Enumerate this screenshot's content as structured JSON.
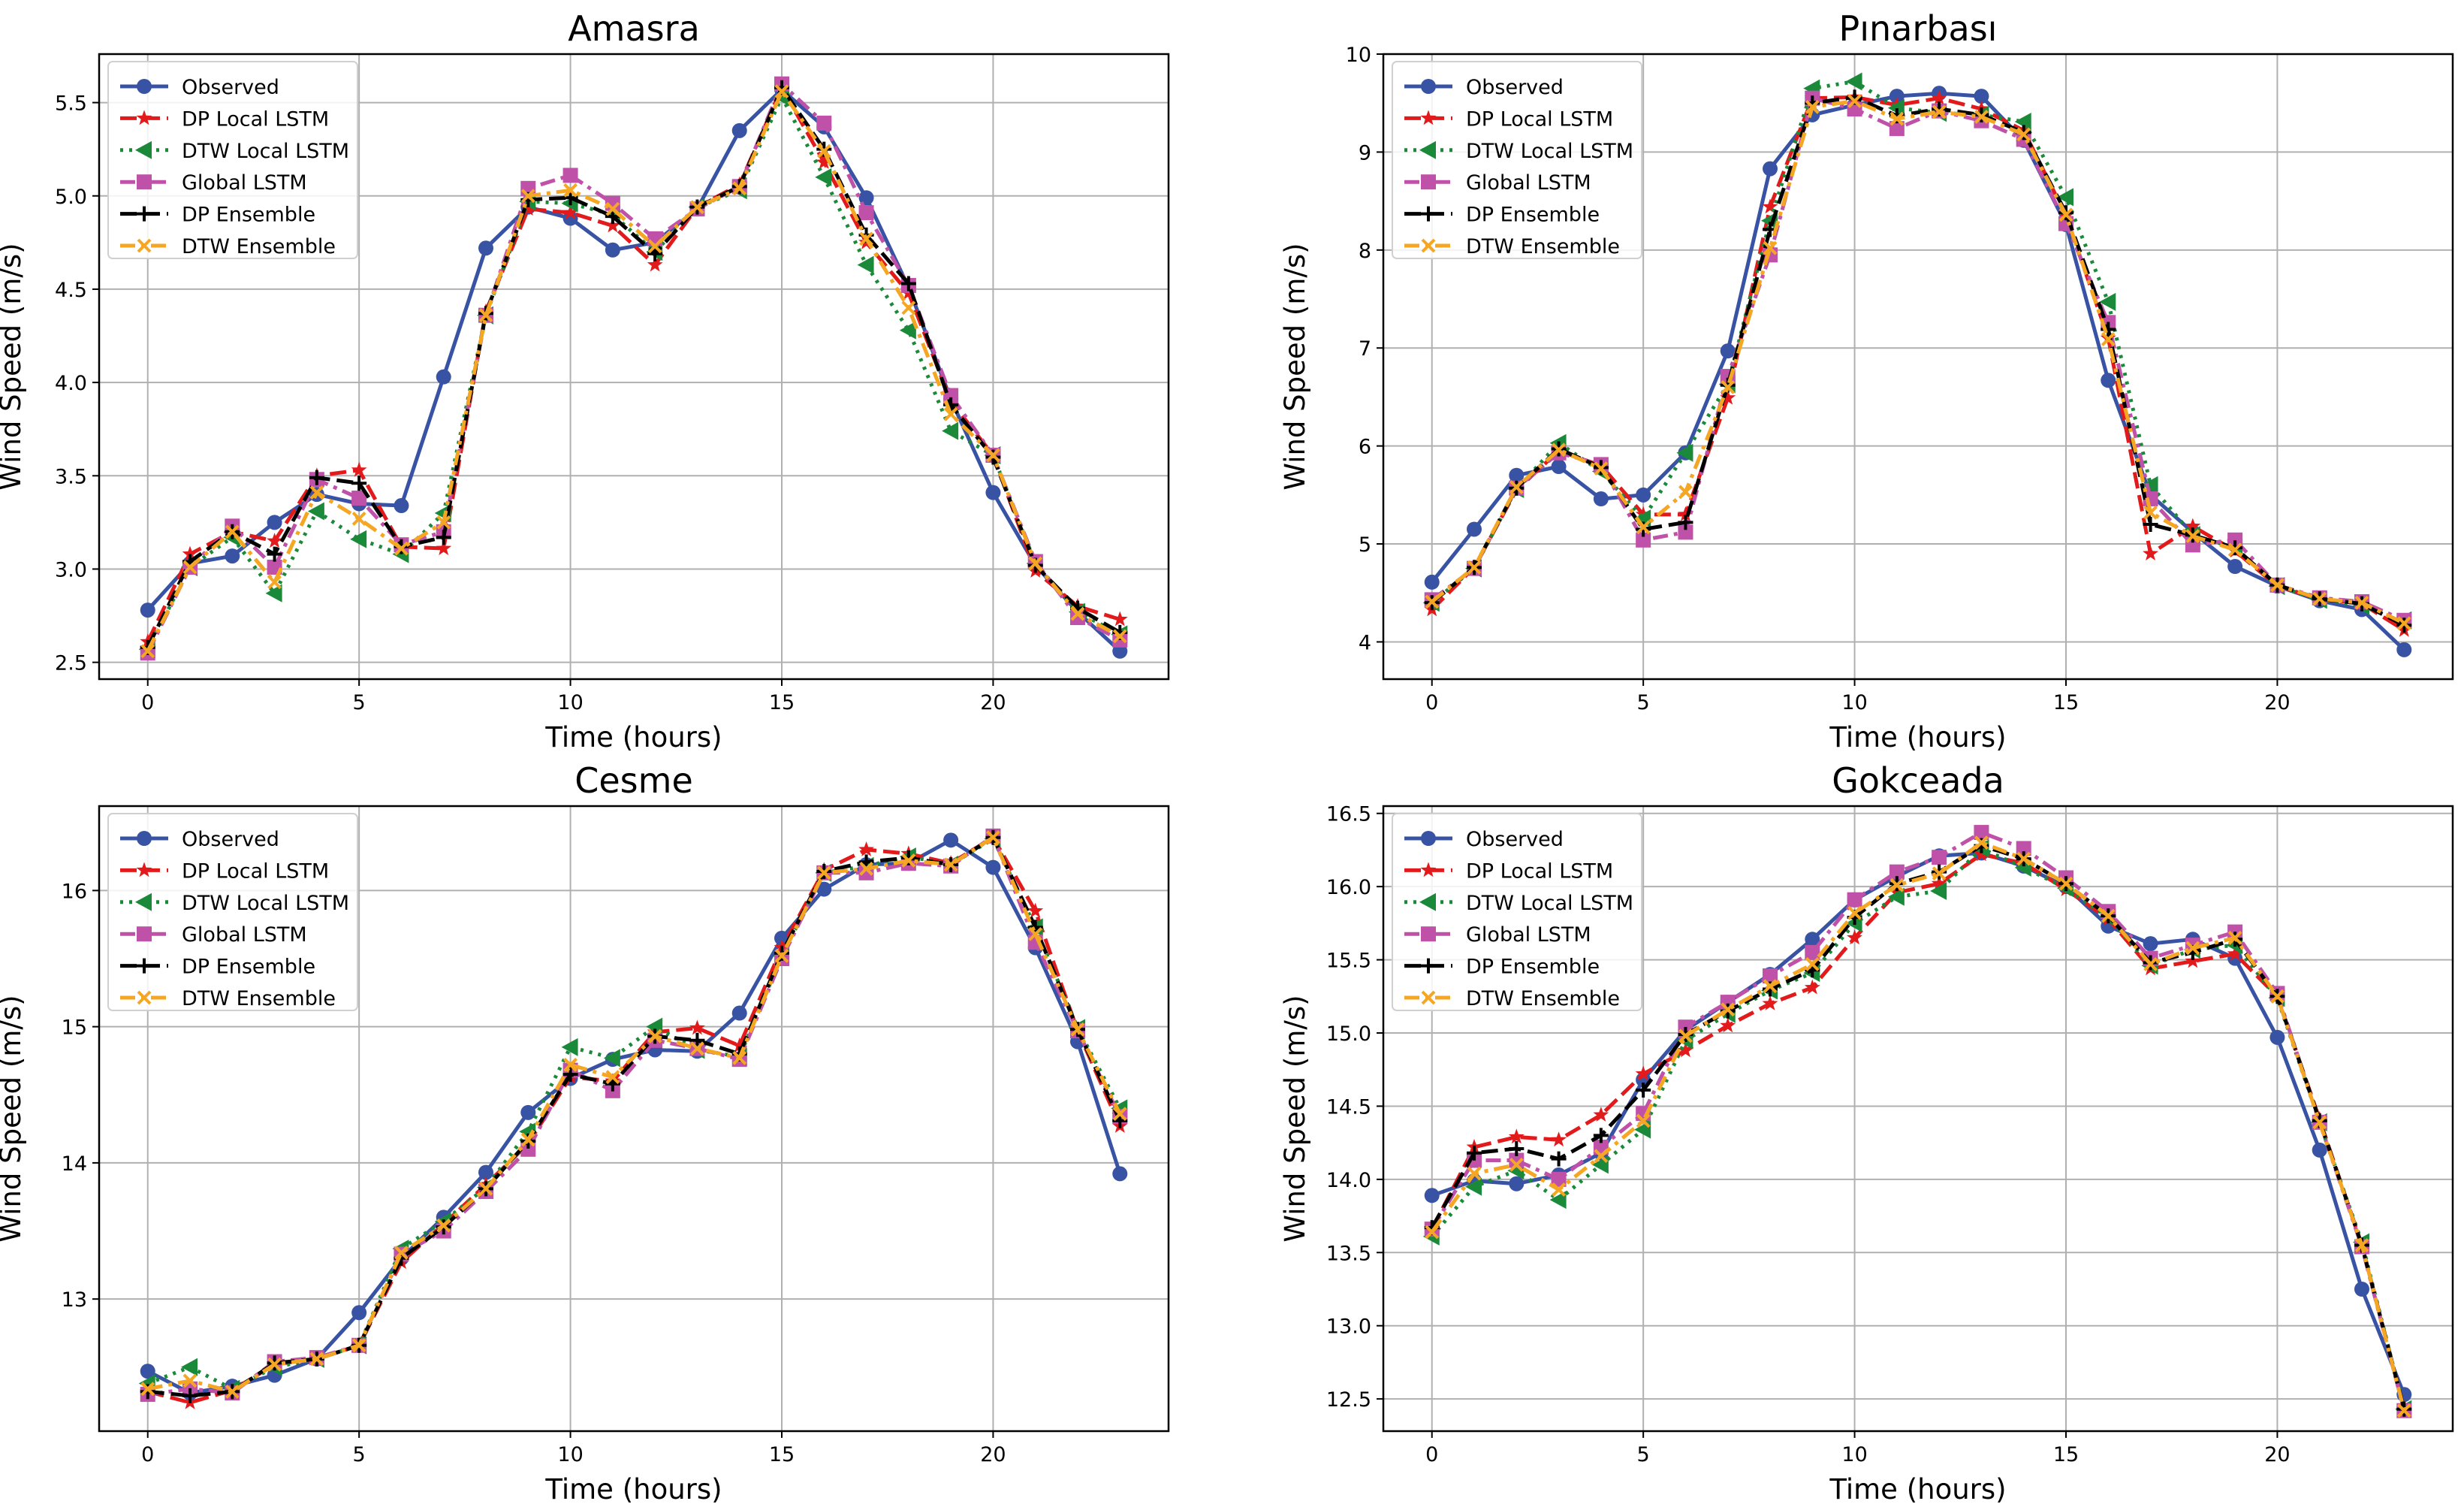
{
  "legend_labels": [
    "Observed",
    "DP Local LSTM",
    "DTW Local LSTM",
    "Global LSTM",
    "DP Ensemble",
    "DTW Ensemble"
  ],
  "series_styles": [
    {
      "name": "Observed",
      "color": "#3953a4",
      "marker": "circle",
      "dash": "solid"
    },
    {
      "name": "DP Local LSTM",
      "color": "#e31a1c",
      "marker": "star",
      "dash": "dashed"
    },
    {
      "name": "DTW Local LSTM",
      "color": "#1a8a3a",
      "marker": "triangle-left",
      "dash": "dotted"
    },
    {
      "name": "Global LSTM",
      "color": "#c051a8",
      "marker": "square",
      "dash": "dashdot"
    },
    {
      "name": "DP Ensemble",
      "color": "#000000",
      "marker": "plus",
      "dash": "dashed"
    },
    {
      "name": "DTW Ensemble",
      "color": "#f5a623",
      "marker": "x",
      "dash": "dashdot"
    }
  ],
  "chart_data": [
    {
      "type": "line",
      "title": "Amasra",
      "xlabel": "Time (hours)",
      "ylabel": "Wind Speed (m/s)",
      "xlim": [
        -1.15,
        24.15
      ],
      "ylim": [
        2.41,
        5.76
      ],
      "xticks": [
        0,
        5,
        10,
        15,
        20
      ],
      "yticks": [
        2.5,
        3.0,
        3.5,
        4.0,
        4.5,
        5.0,
        5.5
      ],
      "ytick_labels": [
        "2.5",
        "3.0",
        "3.5",
        "4.0",
        "4.5",
        "5.0",
        "5.5"
      ],
      "legend_position": "top-left",
      "x": [
        0,
        1,
        2,
        3,
        4,
        5,
        6,
        7,
        8,
        9,
        10,
        11,
        12,
        13,
        14,
        15,
        16,
        17,
        18,
        19,
        20,
        21,
        22,
        23
      ],
      "series": [
        {
          "name": "Observed",
          "values": [
            2.78,
            3.03,
            3.07,
            3.25,
            3.4,
            3.35,
            3.34,
            4.03,
            4.72,
            4.94,
            4.88,
            4.71,
            4.75,
            4.93,
            5.35,
            5.57,
            5.37,
            4.99,
            4.51,
            3.91,
            3.41,
            3.02,
            2.77,
            2.56
          ]
        },
        {
          "name": "DP Local LSTM",
          "values": [
            2.61,
            3.08,
            3.2,
            3.15,
            3.5,
            3.53,
            3.12,
            3.11,
            4.38,
            4.93,
            4.91,
            4.84,
            4.63,
            4.94,
            5.06,
            5.58,
            5.18,
            4.75,
            4.48,
            3.9,
            3.61,
            2.99,
            2.8,
            2.73
          ]
        },
        {
          "name": "DTW Local LSTM",
          "values": [
            2.57,
            3.01,
            3.17,
            2.87,
            3.31,
            3.16,
            3.08,
            3.3,
            4.36,
            4.97,
            4.96,
            4.9,
            4.7,
            4.94,
            5.03,
            5.53,
            5.1,
            4.63,
            4.28,
            3.74,
            3.61,
            3.03,
            2.77,
            2.65
          ]
        },
        {
          "name": "Global LSTM",
          "values": [
            2.55,
            3.01,
            3.23,
            3.01,
            3.48,
            3.38,
            3.13,
            3.2,
            4.36,
            5.04,
            5.11,
            4.96,
            4.77,
            4.93,
            5.05,
            5.6,
            5.39,
            4.91,
            4.52,
            3.93,
            3.61,
            3.04,
            2.74,
            2.62
          ]
        },
        {
          "name": "DP Ensemble",
          "values": [
            2.58,
            3.04,
            3.2,
            3.08,
            3.49,
            3.46,
            3.12,
            3.17,
            4.37,
            4.98,
            4.99,
            4.89,
            4.69,
            4.94,
            5.05,
            5.58,
            5.25,
            4.79,
            4.53,
            3.88,
            3.6,
            3.02,
            2.79,
            2.66
          ]
        },
        {
          "name": "DTW Ensemble",
          "values": [
            2.56,
            3.01,
            3.2,
            2.93,
            3.41,
            3.27,
            3.11,
            3.25,
            4.36,
            5.0,
            5.03,
            4.93,
            4.73,
            4.94,
            5.04,
            5.56,
            5.24,
            4.77,
            4.4,
            3.83,
            3.61,
            3.03,
            2.76,
            2.64
          ]
        }
      ]
    },
    {
      "type": "line",
      "title": "Pınarbası",
      "xlabel": "Time (hours)",
      "ylabel": "Wind Speed (m/s)",
      "xlim": [
        -1.15,
        24.15
      ],
      "ylim": [
        3.62,
        10.0
      ],
      "xticks": [
        0,
        5,
        10,
        15,
        20
      ],
      "yticks": [
        4,
        5,
        6,
        7,
        8,
        9,
        10
      ],
      "ytick_labels": [
        "4",
        "5",
        "6",
        "7",
        "8",
        "9",
        "10"
      ],
      "legend_position": "top-left",
      "x": [
        0,
        1,
        2,
        3,
        4,
        5,
        6,
        7,
        8,
        9,
        10,
        11,
        12,
        13,
        14,
        15,
        16,
        17,
        18,
        19,
        20,
        21,
        22,
        23
      ],
      "series": [
        {
          "name": "Observed",
          "values": [
            4.61,
            5.15,
            5.7,
            5.79,
            5.46,
            5.5,
            5.93,
            6.97,
            8.83,
            9.38,
            9.48,
            9.57,
            9.6,
            9.57,
            9.12,
            8.26,
            6.67,
            5.5,
            5.12,
            4.77,
            4.57,
            4.42,
            4.33,
            3.92
          ]
        },
        {
          "name": "DP Local LSTM",
          "values": [
            4.33,
            4.76,
            5.55,
            5.95,
            5.8,
            5.3,
            5.3,
            6.49,
            8.44,
            9.55,
            9.56,
            9.48,
            9.55,
            9.44,
            9.22,
            8.35,
            7.1,
            4.9,
            5.18,
            4.93,
            4.57,
            4.44,
            4.39,
            4.12
          ]
        },
        {
          "name": "DTW Local LSTM",
          "values": [
            4.4,
            4.75,
            5.56,
            6.03,
            5.74,
            5.26,
            5.93,
            6.63,
            8.3,
            9.65,
            9.72,
            9.45,
            9.4,
            9.38,
            9.31,
            8.54,
            7.47,
            5.6,
            5.09,
            4.96,
            4.57,
            4.43,
            4.37,
            4.22
          ]
        },
        {
          "name": "Global LSTM",
          "values": [
            4.43,
            4.75,
            5.57,
            5.93,
            5.81,
            5.04,
            5.12,
            6.71,
            7.95,
            9.55,
            9.44,
            9.24,
            9.42,
            9.32,
            9.13,
            8.27,
            7.26,
            5.46,
            4.99,
            5.04,
            4.58,
            4.45,
            4.41,
            4.22
          ]
        },
        {
          "name": "DP Ensemble",
          "values": [
            4.4,
            4.76,
            5.57,
            5.97,
            5.78,
            5.15,
            5.22,
            6.62,
            8.21,
            9.5,
            9.56,
            9.37,
            9.44,
            9.38,
            9.2,
            8.38,
            7.19,
            5.2,
            5.09,
            4.96,
            4.58,
            4.44,
            4.39,
            4.17
          ]
        },
        {
          "name": "DTW Ensemble",
          "values": [
            4.41,
            4.76,
            5.58,
            5.96,
            5.77,
            5.17,
            5.53,
            6.6,
            8.02,
            9.46,
            9.52,
            9.34,
            9.41,
            9.36,
            9.18,
            8.36,
            7.09,
            5.32,
            5.08,
            4.94,
            4.58,
            4.44,
            4.4,
            4.19
          ]
        }
      ]
    },
    {
      "type": "line",
      "title": "Cesme",
      "xlabel": "Time (hours)",
      "ylabel": "Wind Speed (m/s)",
      "xlim": [
        -1.15,
        24.15
      ],
      "ylim": [
        12.03,
        16.62
      ],
      "xticks": [
        0,
        5,
        10,
        15,
        20
      ],
      "yticks": [
        13,
        14,
        15,
        16
      ],
      "ytick_labels": [
        "13",
        "14",
        "15",
        "16"
      ],
      "legend_position": "top-left",
      "x": [
        0,
        1,
        2,
        3,
        4,
        5,
        6,
        7,
        8,
        9,
        10,
        11,
        12,
        13,
        14,
        15,
        16,
        17,
        18,
        19,
        20,
        21,
        22,
        23
      ],
      "series": [
        {
          "name": "Observed",
          "values": [
            12.47,
            12.31,
            12.36,
            12.44,
            12.56,
            12.9,
            13.3,
            13.6,
            13.93,
            14.37,
            14.62,
            14.76,
            14.83,
            14.82,
            15.1,
            15.65,
            16.01,
            16.19,
            16.2,
            16.37,
            16.17,
            15.58,
            14.89,
            13.92
          ]
        },
        {
          "name": "DP Local LSTM",
          "values": [
            12.32,
            12.24,
            12.33,
            12.52,
            12.56,
            12.66,
            13.27,
            13.55,
            13.84,
            14.14,
            14.63,
            14.6,
            14.96,
            14.99,
            14.86,
            15.58,
            16.15,
            16.3,
            16.27,
            16.2,
            16.39,
            15.85,
            14.97,
            14.27
          ]
        },
        {
          "name": "DTW Local LSTM",
          "values": [
            12.38,
            12.5,
            12.34,
            12.5,
            12.56,
            12.66,
            13.37,
            13.57,
            13.82,
            14.23,
            14.85,
            14.77,
            15.0,
            14.83,
            14.78,
            15.52,
            16.13,
            16.18,
            16.25,
            16.19,
            16.38,
            15.73,
            14.99,
            14.4
          ]
        },
        {
          "name": "Global LSTM",
          "values": [
            12.3,
            12.34,
            12.31,
            12.54,
            12.57,
            12.66,
            13.33,
            13.5,
            13.79,
            14.1,
            14.68,
            14.53,
            14.9,
            14.84,
            14.76,
            15.5,
            16.13,
            16.13,
            16.2,
            16.18,
            16.4,
            15.62,
            14.97,
            14.34
          ]
        },
        {
          "name": "DP Ensemble",
          "values": [
            12.32,
            12.29,
            12.32,
            12.53,
            12.56,
            12.66,
            13.3,
            13.53,
            13.81,
            14.16,
            14.65,
            14.58,
            14.93,
            14.9,
            14.8,
            15.54,
            16.14,
            16.21,
            16.24,
            16.19,
            16.39,
            15.73,
            14.98,
            14.31
          ]
        },
        {
          "name": "DTW Ensemble",
          "values": [
            12.34,
            12.4,
            12.32,
            12.52,
            12.56,
            12.66,
            13.34,
            13.54,
            13.81,
            14.17,
            14.72,
            14.63,
            14.93,
            14.84,
            14.77,
            15.52,
            16.13,
            16.16,
            16.22,
            16.19,
            16.39,
            15.68,
            14.98,
            14.36
          ]
        }
      ]
    },
    {
      "type": "line",
      "title": "Gokceada",
      "xlabel": "Time (hours)",
      "ylabel": "Wind Speed (m/s)",
      "xlim": [
        -1.15,
        24.15
      ],
      "ylim": [
        12.28,
        16.55
      ],
      "xticks": [
        0,
        5,
        10,
        15,
        20
      ],
      "yticks": [
        12.5,
        13.0,
        13.5,
        14.0,
        14.5,
        15.0,
        15.5,
        16.0,
        16.5
      ],
      "ytick_labels": [
        "12.5",
        "13.0",
        "13.5",
        "14.0",
        "14.5",
        "15.0",
        "15.5",
        "16.0",
        "16.5"
      ],
      "legend_position": "top-left",
      "x": [
        0,
        1,
        2,
        3,
        4,
        5,
        6,
        7,
        8,
        9,
        10,
        11,
        12,
        13,
        14,
        15,
        16,
        17,
        18,
        19,
        20,
        21,
        22,
        23
      ],
      "series": [
        {
          "name": "Observed",
          "values": [
            13.89,
            13.99,
            13.97,
            14.03,
            14.18,
            14.68,
            15.02,
            15.21,
            15.4,
            15.64,
            15.91,
            16.07,
            16.21,
            16.23,
            16.14,
            16.0,
            15.73,
            15.61,
            15.64,
            15.51,
            14.97,
            14.2,
            13.25,
            12.53
          ]
        },
        {
          "name": "DP Local LSTM",
          "values": [
            13.66,
            14.22,
            14.29,
            14.27,
            14.44,
            14.72,
            14.88,
            15.05,
            15.2,
            15.31,
            15.65,
            15.96,
            16.02,
            16.22,
            16.16,
            15.98,
            15.78,
            15.44,
            15.49,
            15.54,
            15.25,
            14.41,
            13.55,
            12.43
          ]
        },
        {
          "name": "DTW Local LSTM",
          "values": [
            13.61,
            13.95,
            14.06,
            13.86,
            14.1,
            14.34,
            14.95,
            15.13,
            15.29,
            15.41,
            15.75,
            15.93,
            15.97,
            16.26,
            16.13,
            15.99,
            15.79,
            15.46,
            15.57,
            15.6,
            15.24,
            14.39,
            13.57,
            12.43
          ]
        },
        {
          "name": "Global LSTM",
          "values": [
            13.66,
            14.13,
            14.13,
            14.0,
            14.22,
            14.45,
            15.04,
            15.21,
            15.39,
            15.55,
            15.91,
            16.1,
            16.2,
            16.37,
            16.26,
            16.06,
            15.83,
            15.51,
            15.6,
            15.69,
            15.27,
            14.39,
            13.54,
            12.42
          ]
        },
        {
          "name": "DP Ensemble",
          "values": [
            13.67,
            14.18,
            14.21,
            14.14,
            14.3,
            14.61,
            14.99,
            15.15,
            15.3,
            15.43,
            15.79,
            16.02,
            16.1,
            16.28,
            16.19,
            16.02,
            15.8,
            15.48,
            15.55,
            15.64,
            15.25,
            14.4,
            13.55,
            12.43
          ]
        },
        {
          "name": "DTW Ensemble",
          "values": [
            13.64,
            14.04,
            14.1,
            13.93,
            14.16,
            14.4,
            14.98,
            15.16,
            15.32,
            15.47,
            15.82,
            16.01,
            16.09,
            16.3,
            16.19,
            16.02,
            15.8,
            15.47,
            15.58,
            15.65,
            15.25,
            14.39,
            13.55,
            12.42
          ]
        }
      ]
    }
  ]
}
